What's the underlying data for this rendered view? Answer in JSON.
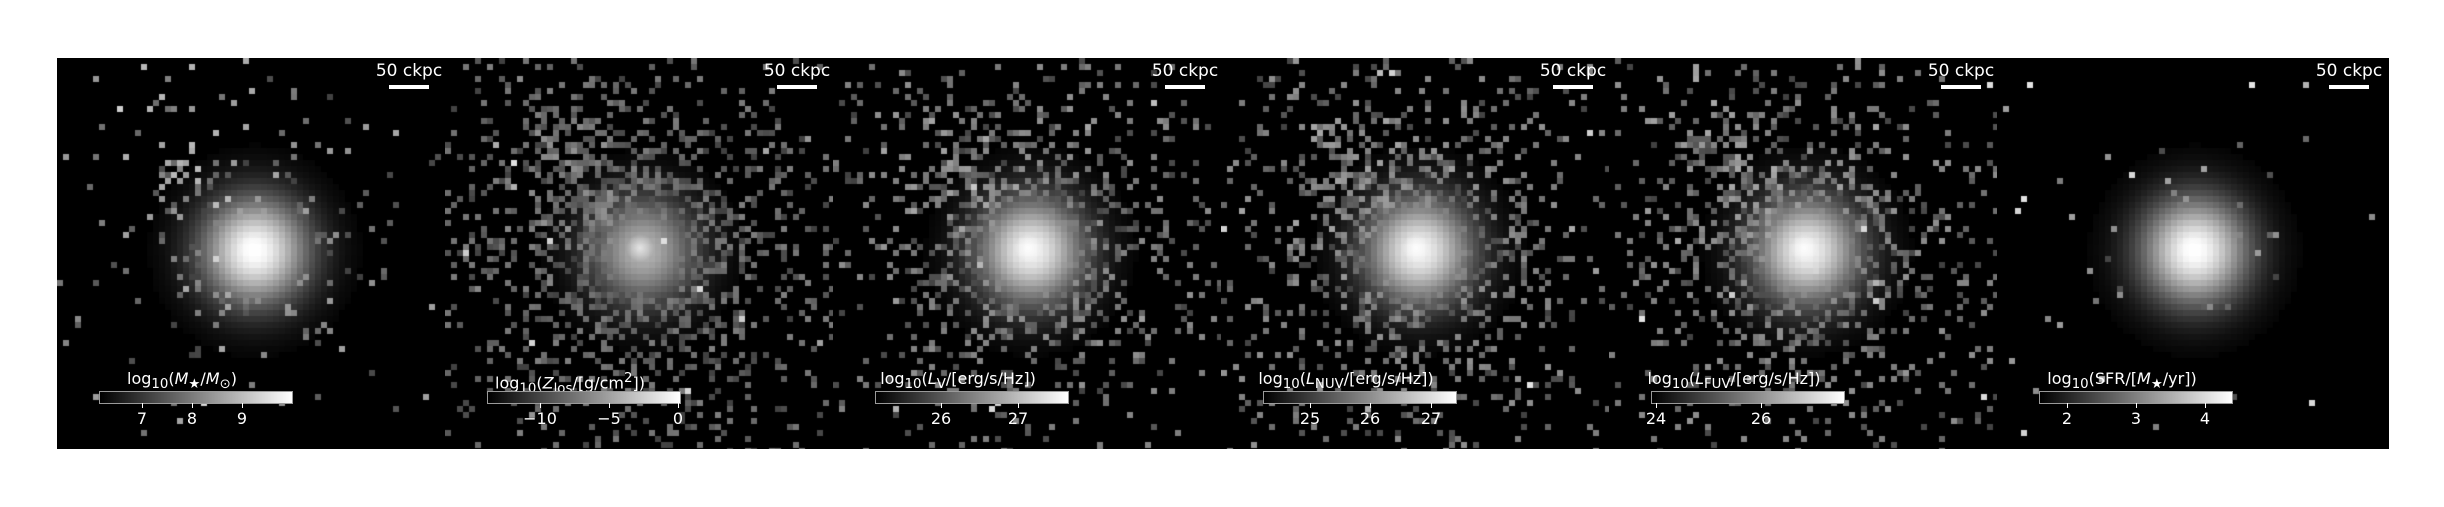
{
  "panels": [
    {
      "scale_label": "50 ckpc",
      "colorbar_label": "log<sub>10</sub>(<i>M</i><sub>★</sub>/<i>M</i><sub>⊙</sub>)",
      "ticks": [
        {
          "label": "7",
          "pos": 0.22
        },
        {
          "label": "8",
          "pos": 0.48
        },
        {
          "label": "9",
          "pos": 0.74
        }
      ],
      "map": {
        "spread": 0.55,
        "density": 0.35,
        "core": 1.0,
        "stream": 0.25,
        "dim": 0.9
      }
    },
    {
      "scale_label": "50 ckpc",
      "colorbar_label": "log<sub>10</sub>(<i>Z</i><sub>los</sub>/[g/cm<sup>2</sup>])",
      "ticks": [
        {
          "label": "−10",
          "pos": 0.27
        },
        {
          "label": "−5",
          "pos": 0.63
        },
        {
          "label": "0",
          "pos": 0.99
        }
      ],
      "map": {
        "spread": 1.0,
        "density": 0.75,
        "core": 0.7,
        "stream": 0.9,
        "dim": 0.55
      }
    },
    {
      "scale_label": "50 ckpc",
      "colorbar_label": "log<sub>10</sub>(<i>L</i><sub>V</sub>/[erg/s/Hz])",
      "ticks": [
        {
          "label": "26",
          "pos": 0.34
        },
        {
          "label": "27",
          "pos": 0.74
        }
      ],
      "map": {
        "spread": 0.9,
        "density": 0.6,
        "core": 0.95,
        "stream": 0.8,
        "dim": 0.7
      }
    },
    {
      "scale_label": "50 ckpc",
      "colorbar_label": "log<sub>10</sub>(<i>L</i><sub>NUV</sub>/[erg/s/Hz])",
      "ticks": [
        {
          "label": "25",
          "pos": 0.24
        },
        {
          "label": "26",
          "pos": 0.55
        },
        {
          "label": "27",
          "pos": 0.87
        }
      ],
      "map": {
        "spread": 0.95,
        "density": 0.62,
        "core": 0.95,
        "stream": 0.85,
        "dim": 0.7
      }
    },
    {
      "scale_label": "50 ckpc",
      "colorbar_label": "log<sub>10</sub>(<i>L</i><sub>FUV</sub>/[erg/s/Hz])",
      "ticks": [
        {
          "label": "24",
          "pos": 0.02
        },
        {
          "label": "26",
          "pos": 0.57
        }
      ],
      "map": {
        "spread": 0.95,
        "density": 0.6,
        "core": 0.95,
        "stream": 0.85,
        "dim": 0.72
      }
    },
    {
      "scale_label": "50 ckpc",
      "colorbar_label": "log<sub>10</sub>(SFR/[<i>M</i><sub>★</sub>/yr])",
      "ticks": [
        {
          "label": "2",
          "pos": 0.14
        },
        {
          "label": "3",
          "pos": 0.5
        },
        {
          "label": "4",
          "pos": 0.86
        }
      ],
      "map": {
        "spread": 0.35,
        "density": 0.25,
        "core": 1.0,
        "stream": 0.1,
        "dim": 0.85
      }
    }
  ]
}
